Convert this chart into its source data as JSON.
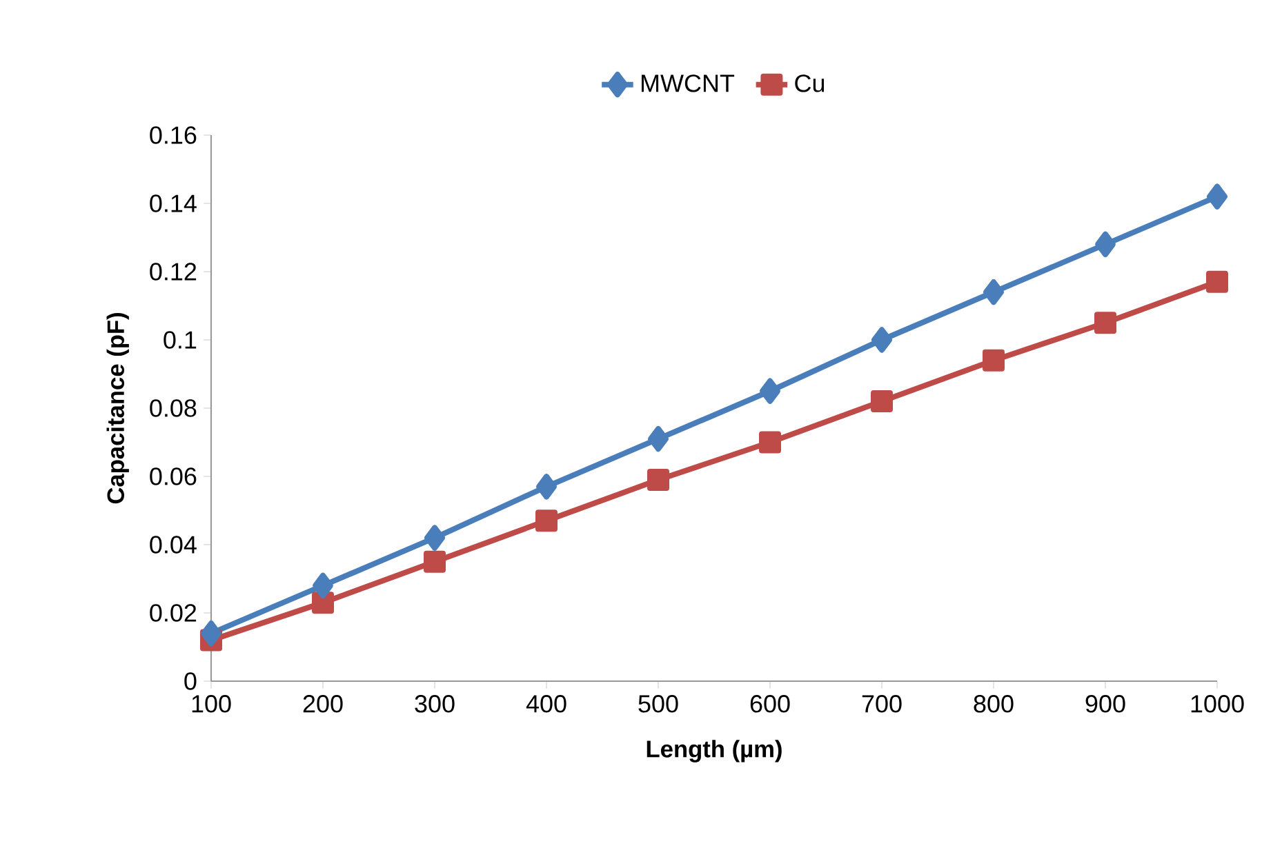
{
  "chart_data": {
    "type": "line",
    "xlabel": "Length (µm)",
    "ylabel": "Capacitance (pF)",
    "categories": [
      "100",
      "200",
      "300",
      "400",
      "500",
      "600",
      "700",
      "800",
      "900",
      "1000"
    ],
    "series": [
      {
        "name": "MWCNT",
        "color": "#4a7ebb",
        "marker": "diamond",
        "values": [
          0.014,
          0.028,
          0.042,
          0.057,
          0.071,
          0.085,
          0.1,
          0.114,
          0.128,
          0.142
        ]
      },
      {
        "name": "Cu",
        "color": "#be4b48",
        "marker": "square",
        "values": [
          0.012,
          0.023,
          0.035,
          0.047,
          0.059,
          0.07,
          0.082,
          0.094,
          0.105,
          0.117
        ]
      }
    ],
    "ylim": [
      0,
      0.16
    ],
    "yticks": [
      0,
      0.02,
      0.04,
      0.06,
      0.08,
      0.1,
      0.12,
      0.14,
      0.16
    ],
    "grid": false,
    "legend": "top",
    "line_style": "solid"
  }
}
